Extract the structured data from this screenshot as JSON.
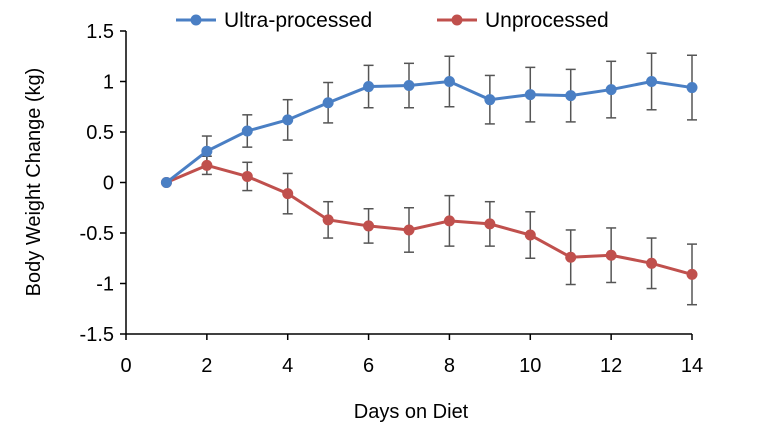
{
  "chart_data": {
    "type": "line",
    "title": "",
    "xlabel": "Days on Diet",
    "ylabel": "Body Weight Change (kg)",
    "xlim": [
      0,
      14
    ],
    "ylim": [
      -1.5,
      1.5
    ],
    "x_ticks": [
      "0",
      "2",
      "4",
      "6",
      "8",
      "10",
      "12",
      "14"
    ],
    "y_ticks": [
      "1.5",
      "1",
      "0.5",
      "0",
      "-0.5",
      "-1",
      "-1.5"
    ],
    "grid": false,
    "legend_position": "top",
    "x": [
      1,
      2,
      3,
      4,
      5,
      6,
      7,
      8,
      9,
      10,
      11,
      12,
      13,
      14
    ],
    "series": [
      {
        "name": "Ultra-processed",
        "color": "#4a7fc4",
        "values": [
          0,
          0.31,
          0.51,
          0.62,
          0.79,
          0.95,
          0.96,
          1.0,
          0.82,
          0.87,
          0.86,
          0.92,
          1.0,
          0.94
        ],
        "errors": [
          0,
          0.15,
          0.16,
          0.2,
          0.2,
          0.21,
          0.22,
          0.25,
          0.24,
          0.27,
          0.26,
          0.28,
          0.28,
          0.32
        ]
      },
      {
        "name": "Unprocessed",
        "color": "#c0504d",
        "values": [
          0,
          0.17,
          0.06,
          -0.11,
          -0.37,
          -0.43,
          -0.47,
          -0.38,
          -0.41,
          -0.52,
          -0.74,
          -0.72,
          -0.8,
          -0.91
        ],
        "errors": [
          0,
          0.09,
          0.14,
          0.2,
          0.18,
          0.17,
          0.22,
          0.25,
          0.22,
          0.23,
          0.27,
          0.27,
          0.25,
          0.3
        ]
      }
    ]
  }
}
